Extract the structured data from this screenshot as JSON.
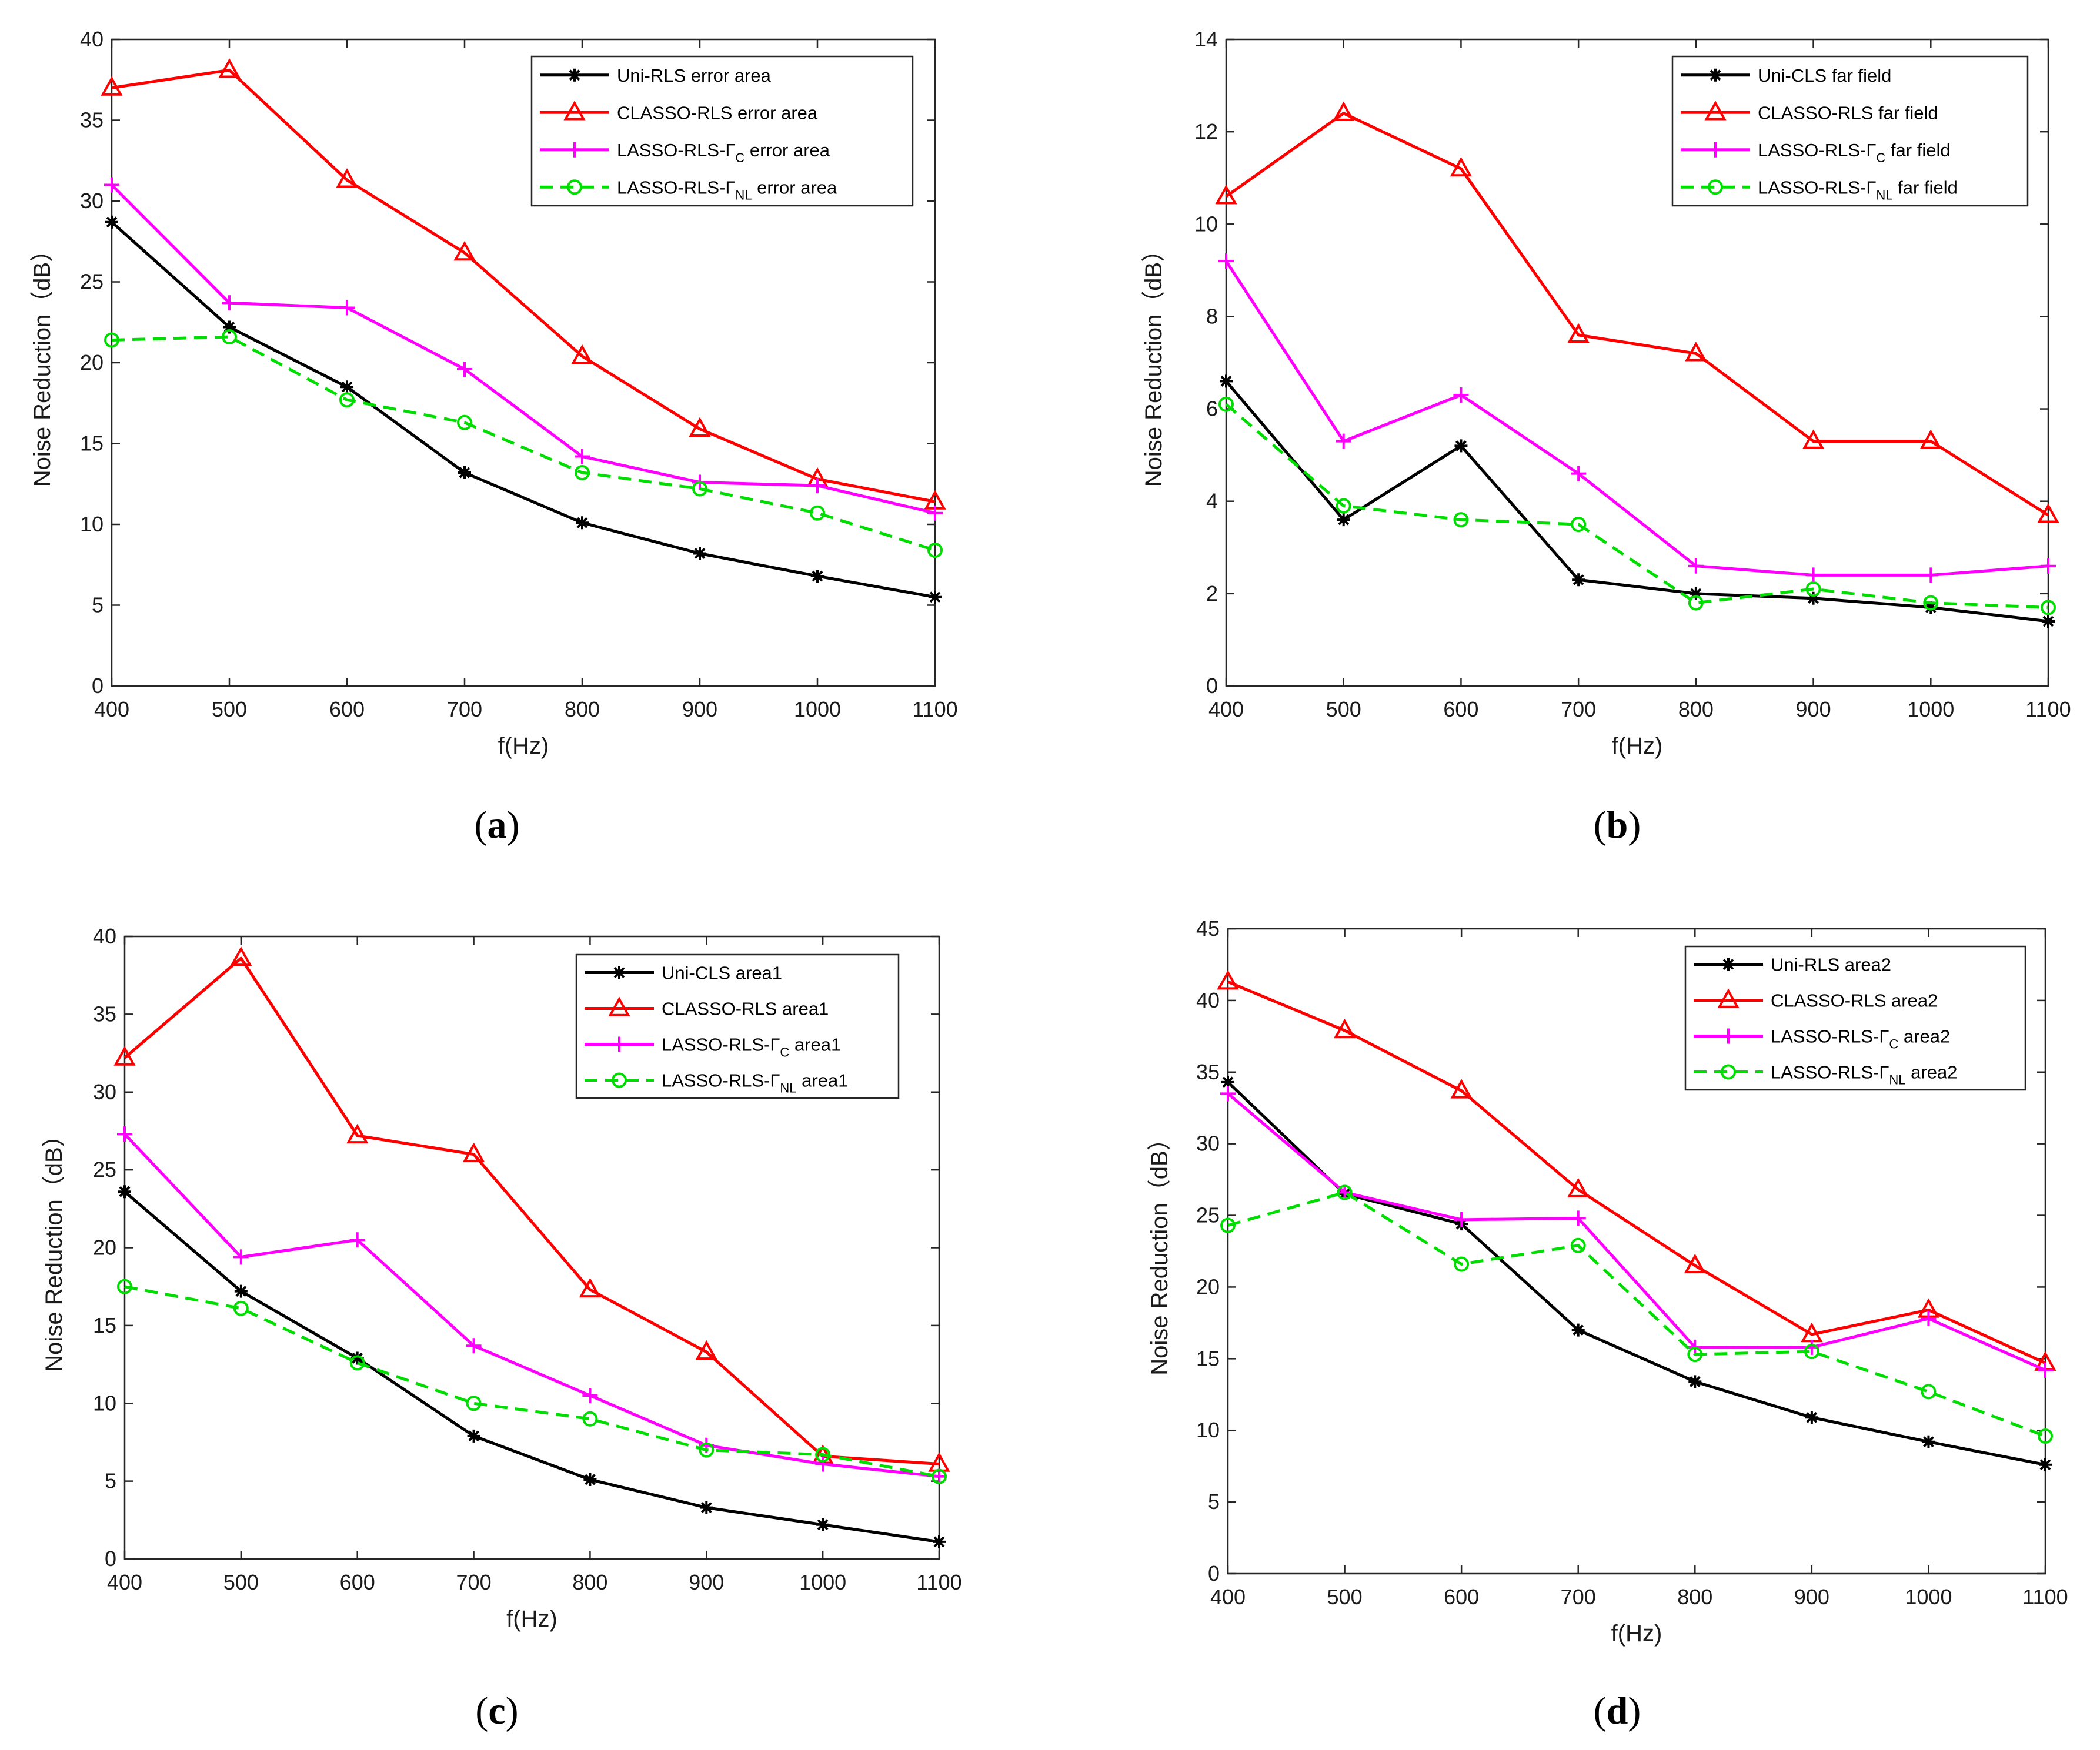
{
  "figure": {
    "colors": {
      "series1": "#000000",
      "series2": "#ff0000",
      "series3": "#ff00ff",
      "series4": "#00dd00"
    },
    "marker_names": [
      "asterisk",
      "triangle",
      "plus",
      "circle"
    ]
  },
  "chart_data": [
    {
      "type": "line",
      "panel_label": "a",
      "caption_open": "(",
      "caption_close": ")",
      "xlabel": "f(Hz)",
      "ylabel": "Noise Reduction（dB）",
      "x": [
        400,
        500,
        600,
        700,
        800,
        900,
        1000,
        1100
      ],
      "xticks": [
        400,
        500,
        600,
        700,
        800,
        900,
        1000,
        1100
      ],
      "xlim": [
        400,
        1100
      ],
      "ylim": [
        0,
        40
      ],
      "yticks": [
        0,
        5,
        10,
        15,
        20,
        25,
        30,
        35,
        40
      ],
      "legend_position": "top-right",
      "series": [
        {
          "name": "Uni-RLS error area",
          "label_main": "Uni-RLS error area",
          "label_sub": "",
          "label_tail": "",
          "marker": "asterisk",
          "style": "solid",
          "color": "#000000",
          "values": [
            28.7,
            22.2,
            18.5,
            13.2,
            10.1,
            8.2,
            6.8,
            5.5
          ]
        },
        {
          "name": "CLASSO-RLS error area",
          "label_main": "CLASSO-RLS error area",
          "label_sub": "",
          "label_tail": "",
          "marker": "triangle",
          "style": "solid",
          "color": "#ff0000",
          "values": [
            37.0,
            38.1,
            31.3,
            26.8,
            20.4,
            15.9,
            12.8,
            11.4
          ]
        },
        {
          "name": "LASSO-RLS-ΓC error area",
          "label_main": "LASSO-RLS-Γ",
          "label_sub": "C",
          "label_tail": " error area",
          "marker": "plus",
          "style": "solid",
          "color": "#ff00ff",
          "values": [
            31.0,
            23.7,
            23.4,
            19.6,
            14.2,
            12.6,
            12.4,
            10.7
          ]
        },
        {
          "name": "LASSO-RLS-ΓNL error area",
          "label_main": "LASSO-RLS-Γ",
          "label_sub": "NL",
          "label_tail": " error area",
          "marker": "circle",
          "style": "dashed",
          "color": "#00dd00",
          "values": [
            21.4,
            21.6,
            17.7,
            16.3,
            13.2,
            12.2,
            10.7,
            8.4
          ]
        }
      ]
    },
    {
      "type": "line",
      "panel_label": "b",
      "caption_open": "(",
      "caption_close": ")",
      "xlabel": "f(Hz)",
      "ylabel": "Noise Reduction（dB）",
      "x": [
        400,
        500,
        600,
        700,
        800,
        900,
        1000,
        1100
      ],
      "xticks": [
        400,
        500,
        600,
        700,
        800,
        900,
        1000,
        1100
      ],
      "xlim": [
        400,
        1100
      ],
      "ylim": [
        0,
        14
      ],
      "yticks": [
        0,
        2,
        4,
        6,
        8,
        10,
        12,
        14
      ],
      "legend_position": "top-right",
      "series": [
        {
          "name": "Uni-CLS far field",
          "label_main": "Uni-CLS far field",
          "label_sub": "",
          "label_tail": "",
          "marker": "asterisk",
          "style": "solid",
          "color": "#000000",
          "values": [
            6.6,
            3.6,
            5.2,
            2.3,
            2.0,
            1.9,
            1.7,
            1.4
          ]
        },
        {
          "name": "CLASSO-RLS far field",
          "label_main": "CLASSO-RLS far field",
          "label_sub": "",
          "label_tail": "",
          "marker": "triangle",
          "style": "solid",
          "color": "#ff0000",
          "values": [
            10.6,
            12.4,
            11.2,
            7.6,
            7.2,
            5.3,
            5.3,
            3.7
          ]
        },
        {
          "name": "LASSO-RLS-ΓC far field",
          "label_main": "LASSO-RLS-Γ",
          "label_sub": "C",
          "label_tail": " far field",
          "marker": "plus",
          "style": "solid",
          "color": "#ff00ff",
          "values": [
            9.2,
            5.3,
            6.3,
            4.6,
            2.6,
            2.4,
            2.4,
            2.6
          ]
        },
        {
          "name": "LASSO-RLS-ΓNL far field",
          "label_main": "LASSO-RLS-Γ",
          "label_sub": "NL",
          "label_tail": " far field",
          "marker": "circle",
          "style": "dashed",
          "color": "#00dd00",
          "values": [
            6.1,
            3.9,
            3.6,
            3.5,
            1.8,
            2.1,
            1.8,
            1.7
          ]
        }
      ]
    },
    {
      "type": "line",
      "panel_label": "c",
      "caption_open": "(",
      "caption_close": ")",
      "xlabel": "f(Hz)",
      "ylabel": "Noise Reduction（dB）",
      "x": [
        400,
        500,
        600,
        700,
        800,
        900,
        1000,
        1100
      ],
      "xticks": [
        400,
        500,
        600,
        700,
        800,
        900,
        1000,
        1100
      ],
      "xlim": [
        400,
        1100
      ],
      "ylim": [
        0,
        40
      ],
      "yticks": [
        0,
        5,
        10,
        15,
        20,
        25,
        30,
        35,
        40
      ],
      "legend_position": "top-right",
      "series": [
        {
          "name": "Uni-CLS area1",
          "label_main": "Uni-CLS area1",
          "label_sub": "",
          "label_tail": "",
          "marker": "asterisk",
          "style": "solid",
          "color": "#000000",
          "values": [
            23.6,
            17.2,
            12.9,
            7.9,
            5.1,
            3.3,
            2.2,
            1.1
          ]
        },
        {
          "name": "CLASSO-RLS area1",
          "label_main": "CLASSO-RLS area1",
          "label_sub": "",
          "label_tail": "",
          "marker": "triangle",
          "style": "solid",
          "color": "#ff0000",
          "values": [
            32.2,
            38.6,
            27.2,
            26.0,
            17.3,
            13.3,
            6.6,
            6.1
          ]
        },
        {
          "name": "LASSO-RLS-ΓC area1",
          "label_main": "LASSO-RLS-Γ",
          "label_sub": "C",
          "label_tail": " area1",
          "marker": "plus",
          "style": "solid",
          "color": "#ff00ff",
          "values": [
            27.3,
            19.4,
            20.5,
            13.7,
            10.5,
            7.3,
            6.1,
            5.3
          ]
        },
        {
          "name": "LASSO-RLS-ΓNL area1",
          "label_main": "LASSO-RLS-Γ",
          "label_sub": "NL",
          "label_tail": " area1",
          "marker": "circle",
          "style": "dashed",
          "color": "#00dd00",
          "values": [
            17.5,
            16.1,
            12.6,
            10.0,
            9.0,
            7.0,
            6.7,
            5.3
          ]
        }
      ]
    },
    {
      "type": "line",
      "panel_label": "d",
      "caption_open": "(",
      "caption_close": ")",
      "xlabel": "f(Hz)",
      "ylabel": "Noise Reduction（dB）",
      "x": [
        400,
        500,
        600,
        700,
        800,
        900,
        1000,
        1100
      ],
      "xticks": [
        400,
        500,
        600,
        700,
        800,
        900,
        1000,
        1100
      ],
      "xlim": [
        400,
        1100
      ],
      "ylim": [
        0,
        45
      ],
      "yticks": [
        0,
        5,
        10,
        15,
        20,
        25,
        30,
        35,
        40,
        45
      ],
      "legend_position": "top-right",
      "series": [
        {
          "name": "Uni-RLS area2",
          "label_main": "Uni-RLS area2",
          "label_sub": "",
          "label_tail": "",
          "marker": "asterisk",
          "style": "solid",
          "color": "#000000",
          "values": [
            34.3,
            26.5,
            24.4,
            17.0,
            13.4,
            10.9,
            9.2,
            7.6
          ]
        },
        {
          "name": "CLASSO-RLS area2",
          "label_main": "CLASSO-RLS area2",
          "label_sub": "",
          "label_tail": "",
          "marker": "triangle",
          "style": "solid",
          "color": "#ff0000",
          "values": [
            41.3,
            37.9,
            33.7,
            26.8,
            21.5,
            16.7,
            18.4,
            14.7
          ]
        },
        {
          "name": "LASSO-RLS-ΓC area2",
          "label_main": "LASSO-RLS-Γ",
          "label_sub": "C",
          "label_tail": " area2",
          "marker": "plus",
          "style": "solid",
          "color": "#ff00ff",
          "values": [
            33.5,
            26.6,
            24.7,
            24.8,
            15.8,
            15.8,
            17.8,
            14.2
          ]
        },
        {
          "name": "LASSO-RLS-ΓNL area2",
          "label_main": "LASSO-RLS-Γ",
          "label_sub": "NL",
          "label_tail": " area2",
          "marker": "circle",
          "style": "dashed",
          "color": "#00dd00",
          "values": [
            24.3,
            26.6,
            21.6,
            22.9,
            15.3,
            15.5,
            12.7,
            9.6
          ]
        }
      ]
    }
  ]
}
